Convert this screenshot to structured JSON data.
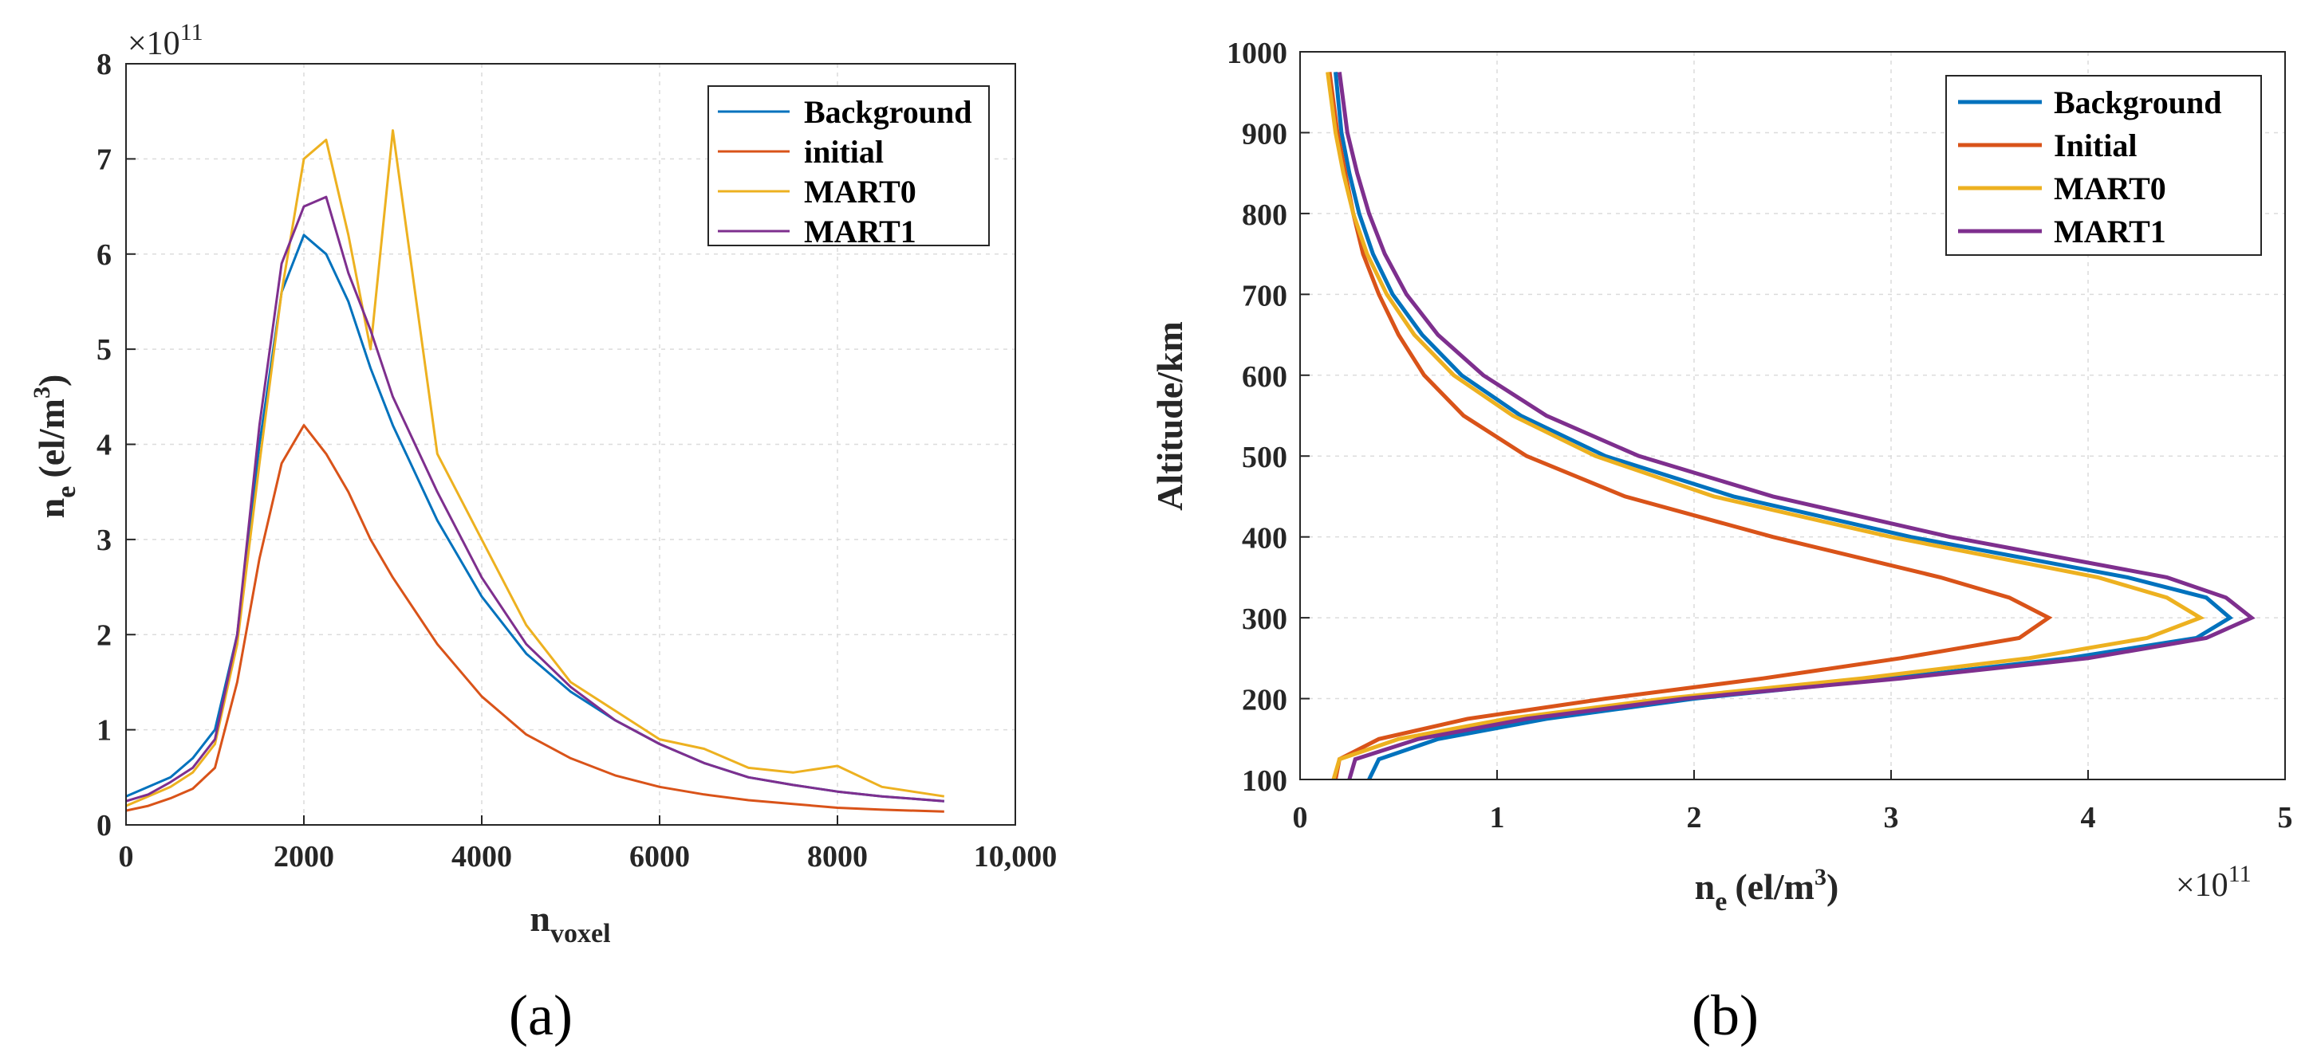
{
  "chart_data": [
    {
      "type": "line",
      "panel_label": "(a)",
      "title": "",
      "xlabel": "n",
      "xlabel_sub": "voxel",
      "ylabel": "n",
      "ylabel_sub": "e",
      "ylabel_unit": "(el/m",
      "ylabel_unit_sup": "3",
      "ylabel_unit_close": ")",
      "y_multiplier_base": "×10",
      "y_multiplier_exp": "11",
      "xlim": [
        0,
        10000
      ],
      "ylim": [
        0,
        8
      ],
      "xticks": [
        0,
        2000,
        4000,
        6000,
        8000,
        10000
      ],
      "xtick_labels": [
        "0",
        "2000",
        "4000",
        "6000",
        "8000",
        "10,000"
      ],
      "yticks": [
        0,
        1,
        2,
        3,
        4,
        5,
        6,
        7,
        8
      ],
      "ytick_labels": [
        "0",
        "1",
        "2",
        "3",
        "4",
        "5",
        "6",
        "7",
        "8"
      ],
      "grid": true,
      "legend_position": "top-right",
      "series": [
        {
          "name": "Background",
          "color": "#0072BD",
          "x": [
            0,
            250,
            500,
            750,
            1000,
            1250,
            1500,
            1750,
            2000,
            2250,
            2500,
            2750,
            3000,
            3500,
            4000,
            4500,
            5000,
            5500,
            6000,
            6500,
            7000,
            7500,
            8000,
            8500,
            9200
          ],
          "values": [
            0.3,
            0.4,
            0.5,
            0.7,
            1.0,
            2.0,
            4.0,
            5.6,
            6.2,
            6.0,
            5.5,
            4.8,
            4.2,
            3.2,
            2.4,
            1.8,
            1.4,
            1.1,
            0.85,
            0.65,
            0.5,
            0.42,
            0.35,
            0.3,
            0.25
          ]
        },
        {
          "name": "initial",
          "color": "#D95319",
          "x": [
            0,
            250,
            500,
            750,
            1000,
            1250,
            1500,
            1750,
            2000,
            2250,
            2500,
            2750,
            3000,
            3500,
            4000,
            4500,
            5000,
            5500,
            6000,
            6500,
            7000,
            7500,
            8000,
            8500,
            9200
          ],
          "values": [
            0.15,
            0.2,
            0.28,
            0.38,
            0.6,
            1.5,
            2.8,
            3.8,
            4.2,
            3.9,
            3.5,
            3.0,
            2.6,
            1.9,
            1.35,
            0.95,
            0.7,
            0.52,
            0.4,
            0.32,
            0.26,
            0.22,
            0.18,
            0.16,
            0.14
          ]
        },
        {
          "name": "MART0",
          "color": "#EDB120",
          "x": [
            0,
            250,
            500,
            750,
            1000,
            1250,
            1500,
            1750,
            2000,
            2250,
            2500,
            2750,
            3000,
            3500,
            4000,
            4500,
            5000,
            5500,
            6000,
            6500,
            7000,
            7500,
            8000,
            8500,
            9200
          ],
          "values": [
            0.2,
            0.3,
            0.4,
            0.55,
            0.85,
            1.9,
            3.8,
            5.6,
            7.0,
            7.2,
            6.2,
            5.0,
            7.3,
            3.9,
            3.0,
            2.1,
            1.5,
            1.2,
            0.9,
            0.8,
            0.6,
            0.55,
            0.62,
            0.4,
            0.3
          ]
        },
        {
          "name": "MART1",
          "color": "#7E2F8E",
          "x": [
            0,
            250,
            500,
            750,
            1000,
            1250,
            1500,
            1750,
            2000,
            2250,
            2500,
            2750,
            3000,
            3500,
            4000,
            4500,
            5000,
            5500,
            6000,
            6500,
            7000,
            7500,
            8000,
            8500,
            9200
          ],
          "values": [
            0.25,
            0.32,
            0.45,
            0.6,
            0.9,
            2.0,
            4.2,
            5.9,
            6.5,
            6.6,
            5.8,
            5.2,
            4.5,
            3.5,
            2.6,
            1.9,
            1.45,
            1.1,
            0.85,
            0.65,
            0.5,
            0.42,
            0.35,
            0.3,
            0.25
          ]
        }
      ]
    },
    {
      "type": "line",
      "panel_label": "(b)",
      "title": "",
      "xlabel": "n",
      "xlabel_sub": "e",
      "xlabel_unit": "(el/m",
      "xlabel_unit_sup": "3",
      "xlabel_unit_close": ")",
      "x_multiplier_base": "×10",
      "x_multiplier_exp": "11",
      "ylabel": "Altitude/km",
      "xlim": [
        0,
        5
      ],
      "ylim": [
        100,
        1000
      ],
      "xticks": [
        0,
        1,
        2,
        3,
        4,
        5
      ],
      "xtick_labels": [
        "0",
        "1",
        "2",
        "3",
        "4",
        "5"
      ],
      "yticks": [
        100,
        200,
        300,
        400,
        500,
        600,
        700,
        800,
        900,
        1000
      ],
      "ytick_labels": [
        "100",
        "200",
        "300",
        "400",
        "500",
        "600",
        "700",
        "800",
        "900",
        "1000"
      ],
      "grid": true,
      "legend_position": "top-right",
      "series": [
        {
          "name": "Background",
          "color": "#0072BD",
          "altitude": [
            100,
            125,
            150,
            175,
            200,
            225,
            250,
            275,
            300,
            325,
            350,
            400,
            450,
            500,
            550,
            600,
            650,
            700,
            750,
            800,
            850,
            900,
            975
          ],
          "values": [
            0.35,
            0.4,
            0.7,
            1.25,
            2.0,
            3.0,
            3.9,
            4.55,
            4.72,
            4.6,
            4.2,
            3.1,
            2.2,
            1.55,
            1.12,
            0.82,
            0.62,
            0.47,
            0.37,
            0.3,
            0.25,
            0.21,
            0.18
          ]
        },
        {
          "name": "Initial",
          "color": "#D95319",
          "altitude": [
            100,
            125,
            150,
            175,
            200,
            225,
            250,
            275,
            300,
            325,
            350,
            400,
            450,
            500,
            550,
            600,
            650,
            700,
            750,
            800,
            850,
            900,
            975
          ],
          "values": [
            0.18,
            0.2,
            0.4,
            0.85,
            1.55,
            2.35,
            3.05,
            3.65,
            3.8,
            3.6,
            3.25,
            2.4,
            1.65,
            1.15,
            0.83,
            0.63,
            0.5,
            0.4,
            0.32,
            0.27,
            0.23,
            0.19,
            0.15
          ]
        },
        {
          "name": "MART0",
          "color": "#EDB120",
          "altitude": [
            100,
            125,
            150,
            175,
            200,
            225,
            250,
            275,
            300,
            325,
            350,
            400,
            450,
            500,
            550,
            600,
            650,
            700,
            750,
            800,
            850,
            900,
            975
          ],
          "values": [
            0.17,
            0.2,
            0.5,
            1.05,
            1.85,
            2.85,
            3.7,
            4.3,
            4.57,
            4.4,
            4.05,
            3.0,
            2.1,
            1.5,
            1.08,
            0.78,
            0.58,
            0.44,
            0.34,
            0.27,
            0.22,
            0.18,
            0.14
          ]
        },
        {
          "name": "MART1",
          "color": "#7E2F8E",
          "altitude": [
            100,
            125,
            150,
            175,
            200,
            225,
            250,
            275,
            300,
            325,
            350,
            400,
            450,
            500,
            550,
            600,
            650,
            700,
            750,
            800,
            850,
            900,
            975
          ],
          "values": [
            0.25,
            0.28,
            0.6,
            1.15,
            1.95,
            3.05,
            4.0,
            4.6,
            4.83,
            4.7,
            4.4,
            3.3,
            2.4,
            1.72,
            1.25,
            0.93,
            0.7,
            0.54,
            0.43,
            0.35,
            0.29,
            0.24,
            0.2
          ]
        }
      ]
    }
  ]
}
